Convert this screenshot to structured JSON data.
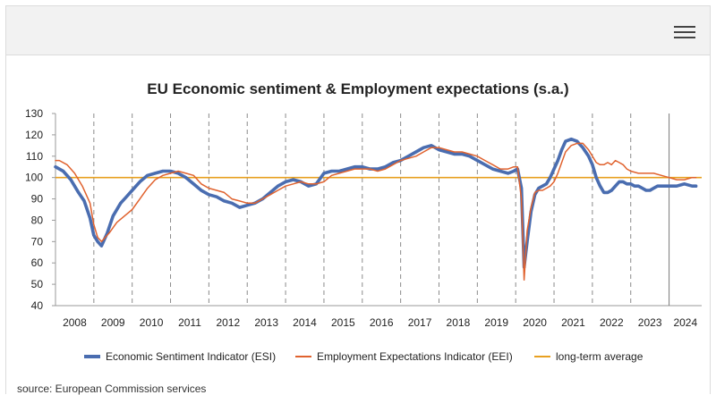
{
  "page": {
    "source": "source: European Commission services"
  },
  "legend_items": [
    {
      "label": "Economic Sentiment Indicator (ESI)",
      "color": "#4a6db0"
    },
    {
      "label": "Employment Expectations Indicator (EEI)",
      "color": "#e0622e"
    },
    {
      "label": "long-term average",
      "color": "#e8a020"
    }
  ],
  "chart_data": {
    "type": "line",
    "title": "EU Economic sentiment & Employment expectations (s.a.)",
    "xlabel": "",
    "ylabel": "",
    "ylim": [
      40,
      130
    ],
    "yticks": [
      40,
      50,
      60,
      70,
      80,
      90,
      100,
      110,
      120,
      130
    ],
    "xlim": [
      2008.0,
      2024.85
    ],
    "year_labels": [
      "2008",
      "2009",
      "2010",
      "2011",
      "2012",
      "2013",
      "2014",
      "2015",
      "2016",
      "2017",
      "2018",
      "2019",
      "2020",
      "2021",
      "2022",
      "2023",
      "2024"
    ],
    "grid": "vertical dashed lines at year boundaries",
    "legend_position": "bottom",
    "reference_line": {
      "name": "long-term average",
      "value": 100,
      "color": "#e8a020"
    },
    "series": [
      {
        "name": "Economic Sentiment Indicator (ESI)",
        "color": "#4a6db0",
        "x": [
          2008.0,
          2008.2,
          2008.4,
          2008.6,
          2008.75,
          2008.9,
          2009.0,
          2009.1,
          2009.2,
          2009.35,
          2009.5,
          2009.7,
          2009.85,
          2010.0,
          2010.2,
          2010.4,
          2010.6,
          2010.8,
          2011.0,
          2011.2,
          2011.4,
          2011.6,
          2011.8,
          2012.0,
          2012.2,
          2012.4,
          2012.6,
          2012.8,
          2013.0,
          2013.2,
          2013.4,
          2013.6,
          2013.8,
          2014.0,
          2014.2,
          2014.4,
          2014.6,
          2014.8,
          2015.0,
          2015.2,
          2015.4,
          2015.6,
          2015.8,
          2016.0,
          2016.2,
          2016.4,
          2016.6,
          2016.8,
          2017.0,
          2017.2,
          2017.4,
          2017.6,
          2017.8,
          2018.0,
          2018.2,
          2018.4,
          2018.6,
          2018.8,
          2019.0,
          2019.2,
          2019.4,
          2019.6,
          2019.8,
          2019.95,
          2020.05,
          2020.15,
          2020.22,
          2020.3,
          2020.4,
          2020.5,
          2020.6,
          2020.7,
          2020.8,
          2020.9,
          2021.0,
          2021.1,
          2021.2,
          2021.3,
          2021.45,
          2021.6,
          2021.75,
          2021.9,
          2022.0,
          2022.1,
          2022.2,
          2022.3,
          2022.4,
          2022.5,
          2022.6,
          2022.7,
          2022.8,
          2022.9,
          2023.0,
          2023.1,
          2023.2,
          2023.3,
          2023.4,
          2023.5,
          2023.6,
          2023.7,
          2023.8,
          2023.9,
          2024.0,
          2024.2,
          2024.4,
          2024.6,
          2024.7
        ],
        "values": [
          105,
          103,
          99,
          93,
          89,
          81,
          73,
          70,
          68,
          74,
          82,
          88,
          91,
          94,
          98,
          101,
          102,
          103,
          103,
          102,
          100,
          97,
          94,
          92,
          91,
          89,
          88,
          86,
          87,
          88,
          90,
          93,
          96,
          98,
          99,
          98,
          96,
          97,
          102,
          103,
          103,
          104,
          105,
          105,
          104,
          104,
          105,
          107,
          108,
          110,
          112,
          114,
          115,
          113,
          112,
          111,
          111,
          110,
          108,
          106,
          104,
          103,
          102,
          103,
          104,
          95,
          58,
          70,
          84,
          92,
          95,
          96,
          97,
          100,
          104,
          108,
          113,
          117,
          118,
          117,
          114,
          110,
          106,
          100,
          96,
          93,
          93,
          94,
          96,
          98,
          98,
          97,
          97,
          96,
          96,
          95,
          94,
          94,
          95,
          96,
          96,
          96,
          96,
          96,
          97,
          96,
          96
        ]
      },
      {
        "name": "Employment Expectations Indicator (EEI)",
        "color": "#e0622e",
        "x": [
          2008.0,
          2008.1,
          2008.3,
          2008.5,
          2008.7,
          2008.9,
          2009.0,
          2009.1,
          2009.2,
          2009.4,
          2009.6,
          2009.8,
          2010.0,
          2010.2,
          2010.4,
          2010.6,
          2010.8,
          2011.0,
          2011.2,
          2011.4,
          2011.6,
          2011.8,
          2012.0,
          2012.2,
          2012.4,
          2012.6,
          2012.8,
          2013.0,
          2013.2,
          2013.4,
          2013.6,
          2013.8,
          2014.0,
          2014.2,
          2014.4,
          2014.6,
          2014.8,
          2015.0,
          2015.2,
          2015.4,
          2015.6,
          2015.8,
          2016.0,
          2016.2,
          2016.4,
          2016.6,
          2016.8,
          2017.0,
          2017.2,
          2017.4,
          2017.6,
          2017.8,
          2018.0,
          2018.2,
          2018.4,
          2018.6,
          2018.8,
          2019.0,
          2019.2,
          2019.4,
          2019.6,
          2019.8,
          2019.95,
          2020.05,
          2020.15,
          2020.22,
          2020.3,
          2020.4,
          2020.5,
          2020.6,
          2020.7,
          2020.8,
          2020.9,
          2021.0,
          2021.1,
          2021.2,
          2021.3,
          2021.45,
          2021.6,
          2021.75,
          2021.9,
          2022.0,
          2022.1,
          2022.2,
          2022.3,
          2022.4,
          2022.5,
          2022.6,
          2022.7,
          2022.8,
          2022.9,
          2023.0,
          2023.2,
          2023.4,
          2023.6,
          2023.8,
          2024.0,
          2024.2,
          2024.4,
          2024.6,
          2024.7
        ],
        "values": [
          108,
          108,
          106,
          102,
          96,
          88,
          78,
          72,
          70,
          74,
          79,
          82,
          85,
          90,
          95,
          99,
          101,
          102,
          103,
          102,
          101,
          97,
          95,
          94,
          93,
          90,
          89,
          88,
          88,
          90,
          92,
          94,
          96,
          97,
          98,
          97,
          97,
          98,
          101,
          102,
          103,
          104,
          104,
          104,
          103,
          104,
          106,
          108,
          109,
          110,
          112,
          114,
          114,
          113,
          112,
          112,
          111,
          110,
          108,
          106,
          104,
          104,
          105,
          105,
          90,
          52,
          75,
          86,
          93,
          94,
          94,
          95,
          96,
          98,
          102,
          107,
          112,
          115,
          116,
          116,
          113,
          110,
          107,
          106,
          106,
          107,
          106,
          108,
          107,
          106,
          104,
          103,
          102,
          102,
          102,
          101,
          100,
          99,
          99,
          100,
          100
        ]
      }
    ]
  }
}
